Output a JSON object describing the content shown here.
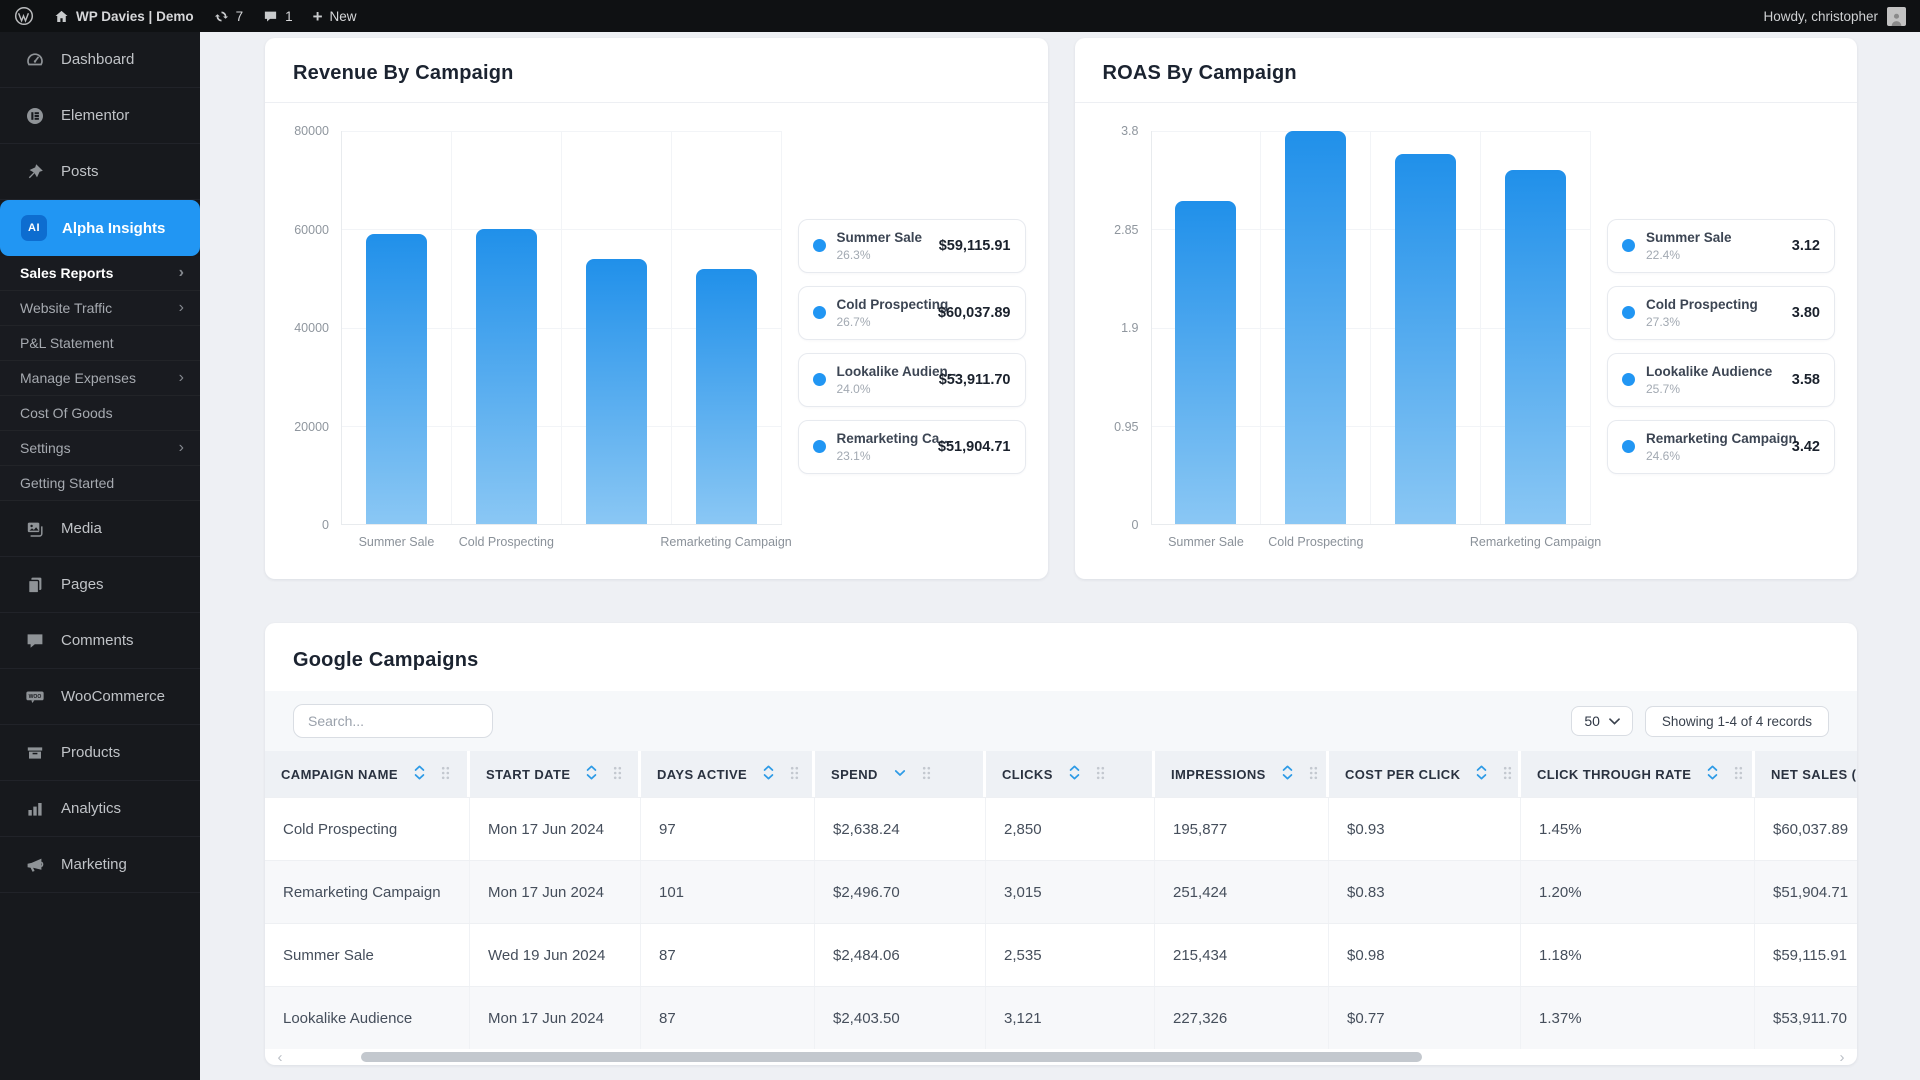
{
  "colors": {
    "accent": "#2196f3",
    "bar_top": "#2090ea",
    "bar_bottom": "#8ac7f4",
    "active_badge": "#0d6dd0",
    "sidebar_bg": "#17191d",
    "adminbar_bg": "#0f1113"
  },
  "admin_bar": {
    "site_name": "WP Davies | Demo",
    "updates_count": "7",
    "comments_count": "1",
    "new_label": "New",
    "howdy": "Howdy, christopher"
  },
  "sidebar": {
    "items_top": [
      {
        "label": "Dashboard",
        "icon": "gauge"
      },
      {
        "label": "Elementor",
        "icon": "elementor"
      },
      {
        "label": "Posts",
        "icon": "pushpin"
      }
    ],
    "active_item": {
      "label": "Alpha Insights",
      "badge": "AI"
    },
    "submenu": [
      {
        "label": "Sales Reports",
        "expandable": true,
        "active": true
      },
      {
        "label": "Website Traffic",
        "expandable": true
      },
      {
        "label": "P&L Statement"
      },
      {
        "label": "Manage Expenses",
        "expandable": true
      },
      {
        "label": "Cost Of Goods"
      },
      {
        "label": "Settings",
        "expandable": true
      },
      {
        "label": "Getting Started"
      }
    ],
    "items_bottom": [
      {
        "label": "Media",
        "icon": "media"
      },
      {
        "label": "Pages",
        "icon": "pages"
      },
      {
        "label": "Comments",
        "icon": "comment"
      },
      {
        "label": "WooCommerce",
        "icon": "woo"
      },
      {
        "label": "Products",
        "icon": "box"
      },
      {
        "label": "Analytics",
        "icon": "bar-chart"
      },
      {
        "label": "Marketing",
        "icon": "megaphone"
      }
    ]
  },
  "chart_data": [
    {
      "type": "bar",
      "title": "Revenue By Campaign",
      "categories": [
        "Summer Sale",
        "Cold Prospecting",
        "Lookalike Audience",
        "Remarketing Campaign"
      ],
      "x_tick_labels": [
        "Summer Sale",
        "Cold Prospecting",
        "",
        "Remarketing Campaign"
      ],
      "values": [
        59115.91,
        60037.89,
        53911.7,
        51904.71
      ],
      "ylim": [
        0,
        80000
      ],
      "ytick_labels": [
        "0",
        "20000",
        "40000",
        "60000",
        "80000"
      ],
      "ytick_values": [
        0,
        20000,
        40000,
        60000,
        80000
      ],
      "grid": true,
      "legend_position": "right",
      "legend": [
        {
          "name": "Summer Sale",
          "percent": "26.3%",
          "value": "$59,115.91"
        },
        {
          "name": "Cold Prospecting",
          "percent": "26.7%",
          "value": "$60,037.89"
        },
        {
          "name": "Lookalike Audien…",
          "percent": "24.0%",
          "value": "$53,911.70"
        },
        {
          "name": "Remarketing Ca…",
          "percent": "23.1%",
          "value": "$51,904.71"
        }
      ]
    },
    {
      "type": "bar",
      "title": "ROAS By Campaign",
      "categories": [
        "Summer Sale",
        "Cold Prospecting",
        "Lookalike Audience",
        "Remarketing Campaign"
      ],
      "x_tick_labels": [
        "Summer Sale",
        "Cold Prospecting",
        "",
        "Remarketing Campaign"
      ],
      "values": [
        3.12,
        3.8,
        3.58,
        3.42
      ],
      "ylim": [
        0,
        3.8
      ],
      "ytick_labels": [
        "0",
        "0.95",
        "1.9",
        "2.85",
        "3.8"
      ],
      "ytick_values": [
        0,
        0.95,
        1.9,
        2.85,
        3.8
      ],
      "grid": true,
      "legend_position": "right",
      "legend": [
        {
          "name": "Summer Sale",
          "percent": "22.4%",
          "value": "3.12"
        },
        {
          "name": "Cold Prospecting",
          "percent": "27.3%",
          "value": "3.80"
        },
        {
          "name": "Lookalike Audience",
          "percent": "25.7%",
          "value": "3.58"
        },
        {
          "name": "Remarketing Campaign",
          "percent": "24.6%",
          "value": "3.42"
        }
      ]
    }
  ],
  "table": {
    "title": "Google Campaigns",
    "search_placeholder": "Search...",
    "page_size": "50",
    "showing_text": "Showing 1-4 of 4 records",
    "columns": [
      {
        "label": "CAMPAIGN NAME",
        "sort": "both"
      },
      {
        "label": "START DATE",
        "sort": "both"
      },
      {
        "label": "DAYS ACTIVE",
        "sort": "both"
      },
      {
        "label": "SPEND",
        "sort": "desc"
      },
      {
        "label": "CLICKS",
        "sort": "both"
      },
      {
        "label": "IMPRESSIONS",
        "sort": "both"
      },
      {
        "label": "COST PER CLICK",
        "sort": "both"
      },
      {
        "label": "CLICK THROUGH RATE",
        "sort": "both"
      },
      {
        "label": "NET SALES (IN",
        "sort": "none"
      }
    ],
    "rows": [
      [
        "Cold Prospecting",
        "Mon 17 Jun 2024",
        "97",
        "$2,638.24",
        "2,850",
        "195,877",
        "$0.93",
        "1.45%",
        "$60,037.89"
      ],
      [
        "Remarketing Campaign",
        "Mon 17 Jun 2024",
        "101",
        "$2,496.70",
        "3,015",
        "251,424",
        "$0.83",
        "1.20%",
        "$51,904.71"
      ],
      [
        "Summer Sale",
        "Wed 19 Jun 2024",
        "87",
        "$2,484.06",
        "2,535",
        "215,434",
        "$0.98",
        "1.18%",
        "$59,115.91"
      ],
      [
        "Lookalike Audience",
        "Mon 17 Jun 2024",
        "87",
        "$2,403.50",
        "3,121",
        "227,326",
        "$0.77",
        "1.37%",
        "$53,911.70"
      ]
    ]
  }
}
